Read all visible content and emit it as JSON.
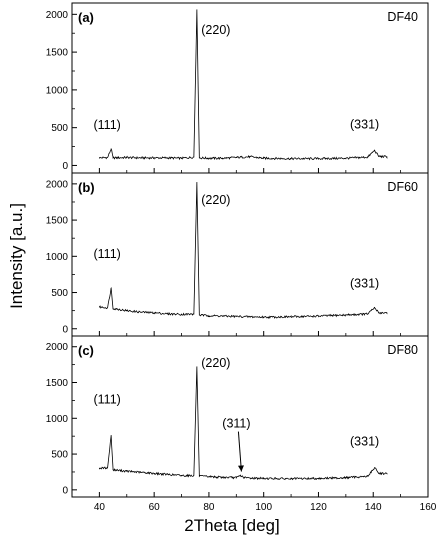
{
  "figure": {
    "xlabel": "2Theta [deg]",
    "ylabel": "Intensity [a.u.]"
  },
  "chart_data": [
    {
      "type": "line",
      "panel_label": "(a)",
      "sample": "DF40",
      "xlim": [
        30,
        160
      ],
      "ylim": [
        -100,
        2150
      ],
      "xticks": [
        40,
        60,
        80,
        100,
        120,
        140,
        160
      ],
      "yticks": [
        0,
        500,
        1000,
        1500,
        2000
      ],
      "x": [
        40,
        43,
        44.3,
        45,
        50,
        55,
        60,
        65,
        70,
        74.5,
        75.6,
        76.5,
        80,
        85,
        90,
        95,
        100,
        110,
        120,
        130,
        138,
        140.5,
        142,
        145
      ],
      "y": [
        100,
        105,
        220,
        100,
        105,
        100,
        100,
        100,
        95,
        110,
        2060,
        100,
        95,
        95,
        105,
        115,
        95,
        90,
        90,
        95,
        110,
        200,
        120,
        115
      ],
      "annotations": [
        {
          "text": "(111)",
          "x": 44.3
        },
        {
          "text": "(220)",
          "x": 75.6
        },
        {
          "text": "(331)",
          "x": 140.5
        }
      ]
    },
    {
      "type": "line",
      "panel_label": "(b)",
      "sample": "DF60",
      "xlim": [
        30,
        160
      ],
      "ylim": [
        -100,
        2150
      ],
      "xticks": [
        40,
        60,
        80,
        100,
        120,
        140,
        160
      ],
      "yticks": [
        0,
        500,
        1000,
        1500,
        2000
      ],
      "x": [
        40,
        43,
        44.3,
        45,
        50,
        55,
        60,
        65,
        70,
        74.5,
        75.6,
        76.5,
        80,
        85,
        90,
        95,
        100,
        110,
        120,
        130,
        138,
        140.5,
        142,
        145
      ],
      "y": [
        300,
        290,
        560,
        280,
        250,
        230,
        220,
        205,
        200,
        200,
        2020,
        190,
        180,
        175,
        170,
        165,
        160,
        165,
        175,
        190,
        205,
        290,
        220,
        220
      ],
      "annotations": [
        {
          "text": "(111)",
          "x": 44.3
        },
        {
          "text": "(220)",
          "x": 75.6
        },
        {
          "text": "(331)",
          "x": 140.5
        }
      ]
    },
    {
      "type": "line",
      "panel_label": "(c)",
      "sample": "DF80",
      "xlim": [
        30,
        160
      ],
      "ylim": [
        -100,
        2150
      ],
      "xticks": [
        40,
        60,
        80,
        100,
        120,
        140,
        160
      ],
      "yticks": [
        0,
        500,
        1000,
        1500,
        2000
      ],
      "x": [
        40,
        43,
        44.3,
        45,
        50,
        55,
        60,
        65,
        70,
        74.5,
        75.6,
        76.5,
        80,
        85,
        90,
        91.5,
        93,
        95,
        100,
        110,
        120,
        130,
        138,
        140.5,
        142,
        145
      ],
      "y": [
        300,
        310,
        760,
        280,
        260,
        245,
        230,
        215,
        200,
        200,
        1720,
        190,
        185,
        175,
        170,
        200,
        170,
        165,
        160,
        155,
        160,
        170,
        190,
        310,
        230,
        230
      ],
      "annotations": [
        {
          "text": "(111)",
          "x": 44.3
        },
        {
          "text": "(220)",
          "x": 75.6
        },
        {
          "text": "(311)",
          "x": 91.5
        },
        {
          "text": "(331)",
          "x": 140.5
        }
      ]
    }
  ]
}
